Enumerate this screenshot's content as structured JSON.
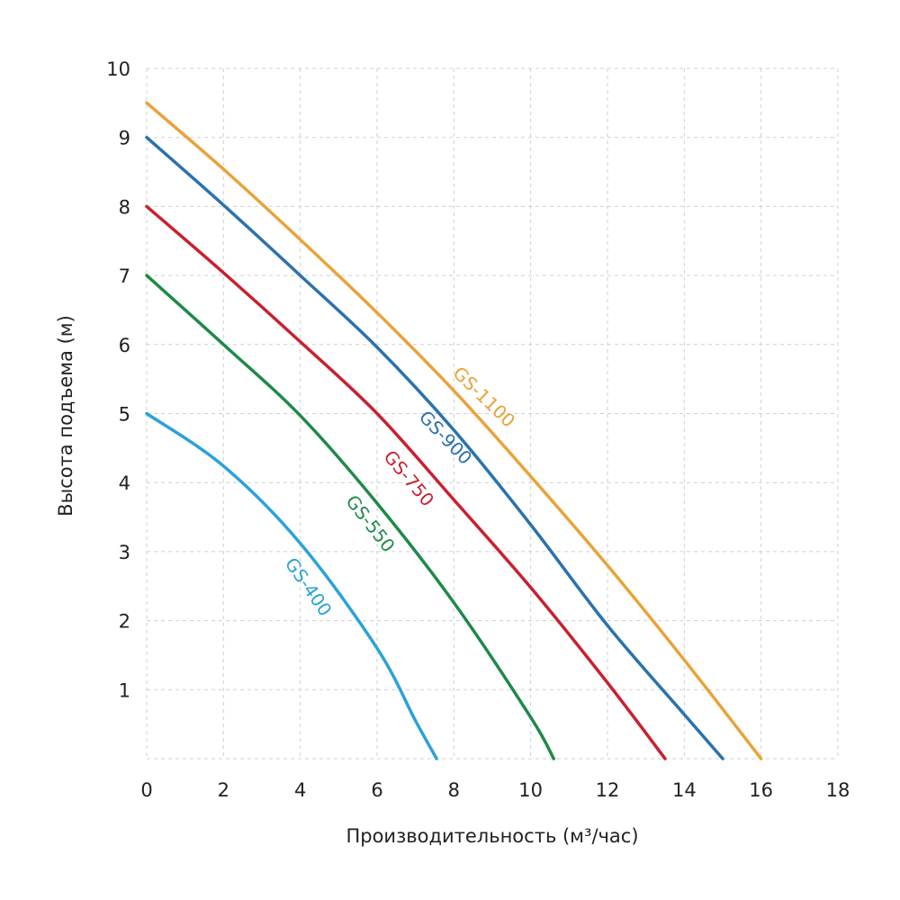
{
  "chart_data": {
    "type": "line",
    "title": "",
    "xlabel": "Производительность (м³/час)",
    "ylabel": "Высота подъема (м)",
    "xlim": [
      0,
      18
    ],
    "ylim": [
      0,
      10
    ],
    "xticks": [
      "0",
      "2",
      "4",
      "6",
      "8",
      "10",
      "12",
      "14",
      "16",
      "18"
    ],
    "yticks": [
      "1",
      "2",
      "3",
      "4",
      "5",
      "6",
      "7",
      "8",
      "9",
      "10"
    ],
    "grid": true,
    "legend": "inline labels on curves",
    "series": [
      {
        "name": "GS-1100",
        "color": "#E8A33A",
        "x": [
          0,
          2,
          4,
          6,
          8,
          10,
          12,
          14,
          16
        ],
        "y": [
          9.5,
          8.54,
          7.52,
          6.46,
          5.33,
          4.09,
          2.8,
          1.43,
          0
        ]
      },
      {
        "name": "GS-900",
        "color": "#2A72AE",
        "x": [
          0,
          2,
          4,
          6,
          8,
          10,
          12,
          14,
          15
        ],
        "y": [
          9.0,
          8.02,
          7.0,
          5.96,
          4.76,
          3.39,
          1.93,
          0.64,
          0
        ]
      },
      {
        "name": "GS-750",
        "color": "#C9202F",
        "x": [
          0,
          2,
          4,
          6,
          8,
          10,
          12,
          13.5
        ],
        "y": [
          8.0,
          7.04,
          6.04,
          5.0,
          3.75,
          2.48,
          1.1,
          0
        ]
      },
      {
        "name": "GS-550",
        "color": "#1E8A48",
        "x": [
          0,
          2,
          4,
          6,
          8,
          10,
          10.6
        ],
        "y": [
          7.0,
          6.0,
          4.97,
          3.7,
          2.26,
          0.6,
          0
        ]
      },
      {
        "name": "GS-400",
        "color": "#2BA2D8",
        "x": [
          0,
          2,
          4,
          6,
          7,
          7.55
        ],
        "y": [
          5.0,
          4.24,
          3.12,
          1.6,
          0.55,
          0
        ]
      }
    ]
  }
}
